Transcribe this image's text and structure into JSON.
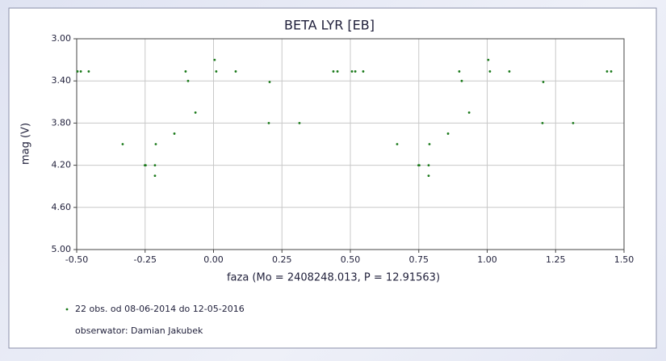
{
  "chart_data": {
    "type": "scatter",
    "title": "BETA LYR [EB]",
    "x_label": "faza (Mo = 2408248.013, P = 12.91563)",
    "y_label": "mag (V)",
    "series": [
      {
        "name": "22 obs. od 08-06-2014 do 12-05-2016",
        "color": "#1a7a1a",
        "x": [
          -0.497,
          -0.485,
          -0.456,
          -0.332,
          -0.251,
          -0.248,
          -0.211,
          -0.214,
          -0.214,
          -0.143,
          -0.102,
          -0.093,
          -0.066,
          0.004,
          0.01,
          0.081,
          0.205,
          0.202,
          0.314,
          0.438,
          0.453,
          0.506,
          0.518,
          0.547,
          0.671,
          0.749,
          0.752,
          0.789,
          0.786,
          0.786,
          0.857,
          0.898,
          0.907,
          0.934,
          1.004,
          1.01,
          1.081,
          1.205,
          1.202,
          1.314,
          1.438,
          1.453
        ],
        "values": [
          3.31,
          3.31,
          3.31,
          4.0,
          4.2,
          4.2,
          4.0,
          4.2,
          4.3,
          3.9,
          3.31,
          3.4,
          3.7,
          3.2,
          3.31,
          3.31,
          3.41,
          3.8,
          3.8,
          3.31,
          3.31,
          3.31,
          3.31,
          3.31,
          4.0,
          4.2,
          4.2,
          4.0,
          4.2,
          4.3,
          3.9,
          3.31,
          3.4,
          3.7,
          3.2,
          3.31,
          3.31,
          3.41,
          3.8,
          3.8,
          3.31,
          3.31
        ]
      }
    ],
    "observer": "obserwator: Damian Jakubek",
    "xlim": [
      -0.5,
      1.5
    ],
    "xticks": [
      {
        "value": -0.5,
        "label": "-0.50"
      },
      {
        "value": -0.25,
        "label": "-0.25"
      },
      {
        "value": 0,
        "label": "0.00"
      },
      {
        "value": 0.25,
        "label": "0.25"
      },
      {
        "value": 0.5,
        "label": "0.50"
      },
      {
        "value": 0.75,
        "label": "0.75"
      },
      {
        "value": 1,
        "label": "1.00"
      },
      {
        "value": 1.25,
        "label": "1.25"
      },
      {
        "value": 1.5,
        "label": "1.50"
      }
    ],
    "ylim": [
      3.0,
      5.0
    ],
    "y_inverted": true,
    "yticks": [
      {
        "value": 3.0,
        "label": "3.00"
      },
      {
        "value": 3.4,
        "label": "3.40"
      },
      {
        "value": 3.8,
        "label": "3.80"
      },
      {
        "value": 4.2,
        "label": "4.20"
      },
      {
        "value": 4.6,
        "label": "4.60"
      },
      {
        "value": 5.0,
        "label": "5.00"
      }
    ],
    "grid": true
  }
}
